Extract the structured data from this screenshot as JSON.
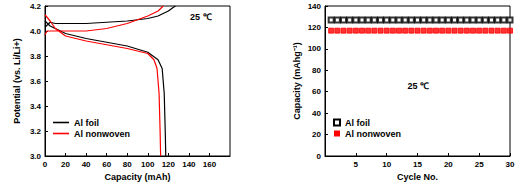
{
  "chart_data": [
    {
      "type": "line",
      "xlabel": "Capacity (mAh)",
      "ylabel": "Potential (vs. Li/Li+)",
      "annotation": "25 ℃",
      "xlim": [
        0,
        180
      ],
      "xticks": [
        0,
        20,
        40,
        60,
        80,
        100,
        120,
        140,
        160
      ],
      "ylim": [
        3.0,
        4.2
      ],
      "yticks": [
        {
          "value": 3.0,
          "label": "3.0"
        },
        3.2,
        3.4,
        3.6,
        3.8,
        {
          "value": 4.0,
          "label": "4.0"
        },
        4.2
      ],
      "grid": false,
      "legend": "lower left",
      "series": [
        {
          "name": "Al foil",
          "color": "#000000",
          "line_style": "solid",
          "x": [
            0,
            5,
            10,
            20,
            40,
            60,
            80,
            100,
            110,
            120,
            125,
            127,
            null,
            0,
            5,
            10,
            20,
            40,
            60,
            80,
            100,
            110,
            114,
            116,
            117,
            117.5
          ],
          "values": [
            4.03,
            4.07,
            4.06,
            4.06,
            4.06,
            4.07,
            4.08,
            4.1,
            4.12,
            4.16,
            4.19,
            4.2,
            null,
            4.08,
            4.04,
            4.02,
            3.98,
            3.94,
            3.91,
            3.88,
            3.83,
            3.77,
            3.7,
            3.5,
            3.2,
            3.0
          ]
        },
        {
          "name": "Al nonwoven",
          "color": "#ff0000",
          "line_style": "solid",
          "x": [
            0,
            2,
            5,
            10,
            20,
            40,
            60,
            80,
            100,
            110,
            115,
            null,
            0,
            5,
            10,
            20,
            40,
            60,
            80,
            100,
            106,
            109,
            111,
            112,
            112.5
          ],
          "values": [
            3.97,
            4.0,
            4.0,
            4.0,
            4.0,
            4.0,
            4.02,
            4.06,
            4.12,
            4.16,
            4.2,
            null,
            4.13,
            4.08,
            4.02,
            3.96,
            3.92,
            3.89,
            3.86,
            3.82,
            3.77,
            3.7,
            3.5,
            3.2,
            3.0
          ]
        }
      ]
    },
    {
      "type": "scatter",
      "xlabel": "Cycle No.",
      "ylabel": "Capacity (mAhg⁻¹)",
      "annotation": "25 ℃",
      "xlim": [
        0,
        30
      ],
      "xticks": [
        5,
        10,
        15,
        20,
        25,
        30
      ],
      "ylim": [
        0,
        140
      ],
      "yticks": [
        0,
        20,
        40,
        60,
        80,
        100,
        120,
        140
      ],
      "grid": false,
      "legend": "lower left",
      "series": [
        {
          "name": "Al foil",
          "color": "#000000",
          "marker": "open_square",
          "x": [
            1,
            2,
            3,
            4,
            5,
            6,
            7,
            8,
            9,
            10,
            11,
            12,
            13,
            14,
            15,
            16,
            17,
            18,
            19,
            20,
            21,
            22,
            23,
            24,
            25,
            26,
            27,
            28,
            29,
            30
          ],
          "values": [
            127,
            127,
            127,
            127,
            127,
            127,
            127,
            127,
            127,
            127,
            127,
            127,
            127,
            127,
            127,
            127,
            127,
            127,
            127,
            127,
            127,
            127,
            127,
            127,
            127,
            127,
            127,
            127,
            127,
            127
          ]
        },
        {
          "name": "Al nonwoven",
          "color": "#ff0000",
          "marker": "square",
          "x": [
            1,
            2,
            3,
            4,
            5,
            6,
            7,
            8,
            9,
            10,
            11,
            12,
            13,
            14,
            15,
            16,
            17,
            18,
            19,
            20,
            21,
            22,
            23,
            24,
            25,
            26,
            27,
            28,
            29,
            30
          ],
          "values": [
            117,
            117,
            117,
            117,
            117,
            117,
            117,
            117,
            117,
            117,
            117,
            117,
            117,
            117,
            117,
            117,
            117,
            117,
            117,
            117,
            117,
            117,
            117,
            117,
            117,
            117,
            117,
            117,
            117,
            117
          ]
        }
      ]
    }
  ]
}
